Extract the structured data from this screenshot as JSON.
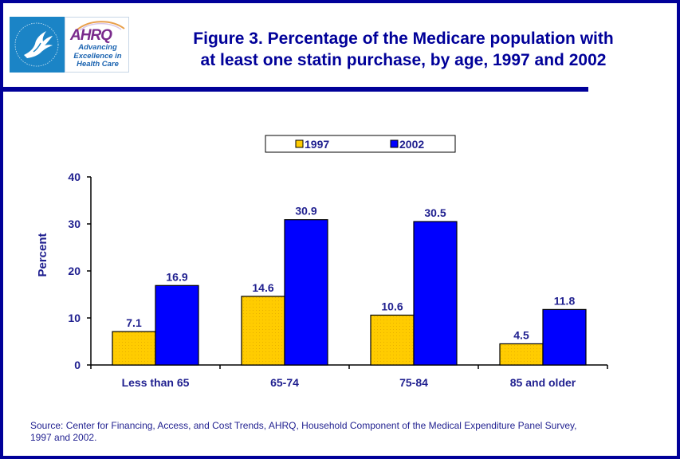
{
  "header": {
    "title_line1": "Figure 3. Percentage of the Medicare population with",
    "title_line2": "at least one statin purchase, by age, 1997 and 2002",
    "logo": {
      "hhs_icon": "hhs-eagle-seal-icon",
      "ahrq_wordmark": "AHRQ",
      "ahrq_tagline_line1": "Advancing",
      "ahrq_tagline_line2": "Excellence in",
      "ahrq_tagline_line3": "Health Care"
    }
  },
  "colors": {
    "frame": "#000099",
    "text": "#1f1f8f",
    "series_1997": "#ffcc00",
    "series_2002": "#0000ff"
  },
  "chart_data": {
    "type": "bar",
    "title": "Figure 3. Percentage of the Medicare population with at least one statin purchase, by age, 1997 and 2002",
    "xlabel": "",
    "ylabel": "Percent",
    "ylim": [
      0,
      40
    ],
    "yticks": [
      0,
      10,
      20,
      30,
      40
    ],
    "grid": false,
    "legend_position": "top-center",
    "categories": [
      "Less than 65",
      "65-74",
      "75-84",
      "85 and older"
    ],
    "series": [
      {
        "name": "1997",
        "color": "#ffcc00",
        "values": [
          7.1,
          14.6,
          10.6,
          4.5
        ]
      },
      {
        "name": "2002",
        "color": "#0000ff",
        "values": [
          16.9,
          30.9,
          30.5,
          11.8
        ]
      }
    ],
    "value_labels": [
      [
        "7.1",
        "14.6",
        "10.6",
        "4.5"
      ],
      [
        "16.9",
        "30.9",
        "30.5",
        "11.8"
      ]
    ]
  },
  "footer": {
    "source_line1": "Source: Center for Financing, Access, and Cost Trends, AHRQ, Household Component of the Medical Expenditure Panel Survey,",
    "source_line2": "1997 and 2002."
  }
}
